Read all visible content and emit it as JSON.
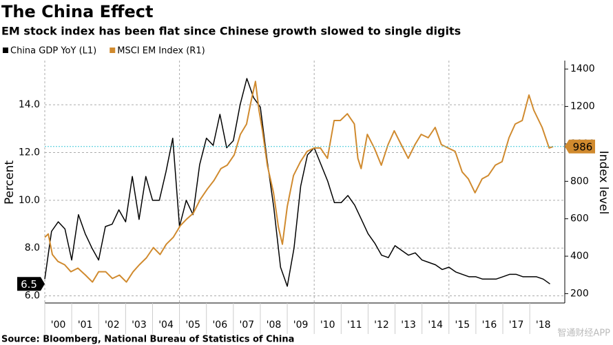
{
  "chart_data": {
    "type": "line",
    "title": "The China Effect",
    "subtitle": "EM stock index has been flat since Chinese growth slowed to single digits",
    "ylabel": "Percent",
    "y2label": "Index level",
    "source": "Source: Bloomberg, National Bureau of Statistics of China",
    "watermark": "智通财经APP",
    "xlim": [
      2000,
      2019.3
    ],
    "xticks": [
      {
        "value": 2000,
        "label": "'00"
      },
      {
        "value": 2001,
        "label": "'01"
      },
      {
        "value": 2002,
        "label": "'02"
      },
      {
        "value": 2003,
        "label": "'03"
      },
      {
        "value": 2004,
        "label": "'04"
      },
      {
        "value": 2005,
        "label": "'05"
      },
      {
        "value": 2006,
        "label": "'06"
      },
      {
        "value": 2007,
        "label": "'07"
      },
      {
        "value": 2008,
        "label": "'08"
      },
      {
        "value": 2009,
        "label": "'09"
      },
      {
        "value": 2010,
        "label": "'10"
      },
      {
        "value": 2011,
        "label": "'11"
      },
      {
        "value": 2012,
        "label": "'12"
      },
      {
        "value": 2013,
        "label": "'13"
      },
      {
        "value": 2014,
        "label": "'14"
      },
      {
        "value": 2015,
        "label": "'15"
      },
      {
        "value": 2016,
        "label": "'16"
      },
      {
        "value": 2017,
        "label": "'17"
      },
      {
        "value": 2018,
        "label": "'18"
      }
    ],
    "ylim": [
      5.7,
      15.85
    ],
    "yticks": [
      {
        "value": 6,
        "label": "6.0"
      },
      {
        "value": 8,
        "label": "8.0"
      },
      {
        "value": 10,
        "label": "10.0"
      },
      {
        "value": 12,
        "label": "12.0"
      },
      {
        "value": 14,
        "label": "14.0"
      }
    ],
    "y2lim": [
      150,
      1445
    ],
    "y2ticks": [
      200,
      400,
      600,
      800,
      1000,
      1200,
      1400
    ],
    "grid": true,
    "series": [
      {
        "name": "China GDP YoY (L1)",
        "color": "#000000",
        "x": [
          2000,
          2000.25,
          2000.5,
          2000.75,
          2001,
          2001.25,
          2001.5,
          2001.75,
          2002,
          2002.25,
          2002.5,
          2002.75,
          2003,
          2003.25,
          2003.5,
          2003.75,
          2004,
          2004.25,
          2004.5,
          2004.75,
          2005,
          2005.25,
          2005.5,
          2005.75,
          2006,
          2006.25,
          2006.5,
          2006.75,
          2007,
          2007.25,
          2007.5,
          2007.75,
          2008,
          2008.25,
          2008.5,
          2008.75,
          2009,
          2009.25,
          2009.5,
          2009.75,
          2010,
          2010.25,
          2010.5,
          2010.75,
          2011,
          2011.25,
          2011.5,
          2011.75,
          2012,
          2012.25,
          2012.5,
          2012.75,
          2013,
          2013.25,
          2013.5,
          2013.75,
          2014,
          2014.25,
          2014.5,
          2014.75,
          2015,
          2015.25,
          2015.5,
          2015.75,
          2016,
          2016.25,
          2016.5,
          2016.75,
          2017,
          2017.25,
          2017.5,
          2017.75,
          2018,
          2018.25,
          2018.5,
          2018.75
        ],
        "values": [
          6.7,
          8.7,
          9.1,
          8.8,
          7.5,
          9.4,
          8.6,
          8.0,
          7.5,
          8.9,
          9.0,
          9.6,
          9.1,
          11.0,
          9.2,
          11.0,
          10.0,
          10.0,
          11.2,
          12.6,
          8.9,
          10.0,
          9.4,
          11.5,
          12.6,
          12.3,
          13.6,
          12.2,
          12.5,
          14.0,
          15.1,
          14.3,
          13.9,
          11.7,
          9.7,
          7.2,
          6.4,
          8.0,
          10.6,
          11.9,
          12.2,
          11.5,
          10.8,
          9.9,
          9.9,
          10.2,
          9.8,
          9.2,
          8.6,
          8.2,
          7.7,
          7.6,
          8.1,
          7.9,
          7.7,
          7.8,
          7.5,
          7.4,
          7.3,
          7.1,
          7.2,
          7.0,
          6.9,
          6.8,
          6.8,
          6.7,
          6.7,
          6.7,
          6.8,
          6.9,
          6.9,
          6.8,
          6.8,
          6.8,
          6.7,
          6.5
        ]
      },
      {
        "name": "MSCI EM Index (R1)",
        "color": "#d08a2e",
        "axis": "y2",
        "x": [
          2000,
          2000.13,
          2000.28,
          2000.49,
          2000.74,
          2000.97,
          2001.23,
          2001.51,
          2001.77,
          2002,
          2002.26,
          2002.51,
          2002.77,
          2003.03,
          2003.28,
          2003.51,
          2003.77,
          2004.03,
          2004.28,
          2004.51,
          2004.77,
          2005.03,
          2005.28,
          2005.51,
          2005.77,
          2006.03,
          2006.28,
          2006.54,
          2006.77,
          2007.03,
          2007.26,
          2007.49,
          2007.64,
          2007.82,
          2007.95,
          2008.08,
          2008.26,
          2008.49,
          2008.67,
          2008.82,
          2009,
          2009.23,
          2009.49,
          2009.74,
          2010,
          2010.23,
          2010.49,
          2010.74,
          2010.97,
          2011.23,
          2011.49,
          2011.62,
          2011.74,
          2011.97,
          2012.23,
          2012.49,
          2012.74,
          2012.97,
          2013.23,
          2013.49,
          2013.74,
          2013.97,
          2014.23,
          2014.49,
          2014.72,
          2014.97,
          2015.23,
          2015.49,
          2015.72,
          2015.97,
          2016.23,
          2016.46,
          2016.72,
          2016.97,
          2017.23,
          2017.46,
          2017.72,
          2017.97,
          2018.15,
          2018.46,
          2018.72,
          2018.87
        ],
        "values": [
          501,
          519,
          409,
          372,
          354,
          317,
          336,
          299,
          262,
          317,
          317,
          281,
          299,
          262,
          317,
          354,
          391,
          446,
          409,
          464,
          501,
          563,
          600,
          629,
          703,
          758,
          805,
          868,
          886,
          941,
          1051,
          1106,
          1217,
          1334,
          1180,
          1070,
          886,
          739,
          556,
          464,
          666,
          831,
          905,
          960,
          978,
          978,
          923,
          1125,
          1125,
          1161,
          1106,
          923,
          868,
          1051,
          978,
          886,
          996,
          1070,
          996,
          923,
          996,
          1051,
          1033,
          1088,
          996,
          978,
          960,
          850,
          813,
          739,
          813,
          831,
          886,
          905,
          1033,
          1106,
          1125,
          1261,
          1180,
          1088,
          978,
          986
        ]
      }
    ]
  }
}
